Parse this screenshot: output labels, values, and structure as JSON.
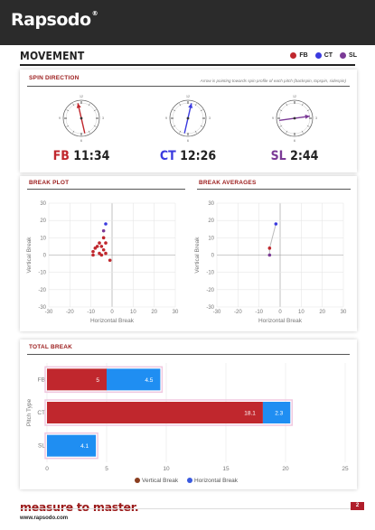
{
  "brand": {
    "logo": "Rapsodo",
    "reg": "®"
  },
  "page_title": "MOVEMENT",
  "legend": [
    {
      "label": "FB",
      "color": "#c0272d"
    },
    {
      "label": "CT",
      "color": "#3a3adf"
    },
    {
      "label": "SL",
      "color": "#7b3a96"
    }
  ],
  "spin_direction": {
    "title": "SPIN DIRECTION",
    "note": "Arrow is pointing towards spin profile of each pitch (backspin, topspin, sidespin)",
    "pitches": [
      {
        "type": "FB",
        "time": "11:34",
        "hour": 11,
        "minute": 34,
        "color": "#c0272d"
      },
      {
        "type": "CT",
        "time": "12:26",
        "hour": 12,
        "minute": 26,
        "color": "#3a3adf"
      },
      {
        "type": "SL",
        "time": "2:44",
        "hour": 2,
        "minute": 44,
        "color": "#7b3a96"
      }
    ],
    "dial_labels": {
      "top": "12",
      "right": "3",
      "bottom": "6",
      "left": "9"
    }
  },
  "break_plot": {
    "title": "BREAK PLOT",
    "chart_data": {
      "type": "scatter",
      "xlabel": "Horizontal Break",
      "ylabel": "Vertical Break",
      "xlim": [
        -30,
        30
      ],
      "ylim": [
        -30,
        30
      ],
      "xticks": [
        "-30",
        "-20",
        "-10",
        "0",
        "10",
        "20",
        "30"
      ],
      "yticks": [
        "30",
        "20",
        "10",
        "0",
        "-10",
        "-20",
        "-30"
      ],
      "series": [
        {
          "pitch": "FB",
          "color": "#c0272d",
          "points": [
            [
              -4,
              10
            ],
            [
              -3,
              7
            ],
            [
              -6,
              7
            ],
            [
              -7,
              5
            ],
            [
              -5,
              5
            ],
            [
              -8,
              4
            ],
            [
              -4,
              3
            ],
            [
              -9,
              2
            ],
            [
              -6,
              1
            ],
            [
              -3,
              1
            ],
            [
              -9,
              0
            ],
            [
              -5,
              0
            ],
            [
              -1,
              -3
            ]
          ]
        },
        {
          "pitch": "CT",
          "color": "#3a3adf",
          "points": [
            [
              -3,
              18
            ]
          ]
        },
        {
          "pitch": "SL",
          "color": "#7b3a96",
          "points": [
            [
              -4,
              14
            ]
          ]
        }
      ]
    }
  },
  "break_averages": {
    "title": "BREAK AVERAGES",
    "chart_data": {
      "type": "scatter",
      "xlabel": "Horizontal Break",
      "ylabel": "Vertical Break",
      "xlim": [
        -30,
        30
      ],
      "ylim": [
        -30,
        30
      ],
      "xticks": [
        "-30",
        "-20",
        "-10",
        "0",
        "10",
        "20",
        "30"
      ],
      "yticks": [
        "30",
        "20",
        "10",
        "0",
        "-10",
        "-20",
        "-30"
      ],
      "series": [
        {
          "pitch": "CT",
          "color": "#3a3adf",
          "points": [
            [
              -2,
              18
            ]
          ]
        },
        {
          "pitch": "FB",
          "color": "#c0272d",
          "points": [
            [
              -5,
              4
            ]
          ]
        },
        {
          "pitch": "SL",
          "color": "#7b3a96",
          "points": [
            [
              -5,
              0
            ]
          ]
        }
      ]
    }
  },
  "total_break": {
    "title": "TOTAL BREAK",
    "chart_data": {
      "type": "bar",
      "orientation": "horizontal",
      "stacked": true,
      "ylabel": "Pitch Type",
      "categories": [
        "FB",
        "CT",
        "SL"
      ],
      "xlim": [
        0,
        25
      ],
      "xticks": [
        "0",
        "5",
        "10",
        "15",
        "20",
        "25"
      ],
      "series": [
        {
          "name": "Vertical Break",
          "color": "#c0272d",
          "values": [
            5,
            18.1,
            0
          ]
        },
        {
          "name": "Horizontal Break",
          "color": "#1f8ef2",
          "values": [
            4.5,
            2.3,
            4.1
          ]
        }
      ],
      "value_labels": [
        [
          "5",
          "4.5"
        ],
        [
          "18.1",
          "2.3"
        ],
        [
          "",
          "4.1"
        ]
      ],
      "legend_position": "bottom",
      "legend_markers": [
        "#8a3d1f",
        "#3a5adf"
      ]
    }
  },
  "footer": {
    "slogan": "measure to master.",
    "url": "www.rapsodo.com",
    "page_number": "2"
  }
}
